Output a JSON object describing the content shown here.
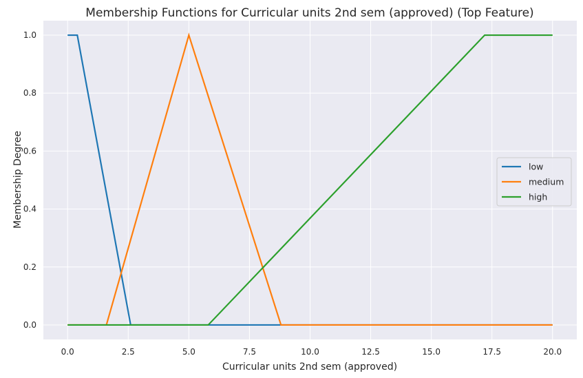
{
  "chart_data": {
    "type": "line",
    "title": "Membership Functions for Curricular units 2nd sem (approved) (Top Feature)",
    "xlabel": "Curricular units 2nd sem (approved)",
    "ylabel": "Membership Degree",
    "xlim": [
      -1.0,
      21.0
    ],
    "ylim": [
      -0.05,
      1.05
    ],
    "xticks": [
      0,
      2.5,
      5,
      7.5,
      10,
      12.5,
      15,
      17.5,
      20
    ],
    "xtick_labels": [
      "0.0",
      "2.5",
      "5.0",
      "7.5",
      "10.0",
      "12.5",
      "15.0",
      "17.5",
      "20.0"
    ],
    "yticks": [
      0,
      0.2,
      0.4,
      0.6,
      0.8,
      1.0
    ],
    "ytick_labels": [
      "0.0",
      "0.2",
      "0.4",
      "0.6",
      "0.8",
      "1.0"
    ],
    "grid": true,
    "legend_position": "center-right",
    "background": "#eaeaf2",
    "series": [
      {
        "name": "low",
        "color": "#1f77b4",
        "x": [
          0,
          0.4,
          2.6,
          20
        ],
        "y": [
          1,
          1,
          0,
          0
        ]
      },
      {
        "name": "medium",
        "color": "#ff7f0e",
        "x": [
          0,
          1.6,
          5.0,
          8.8,
          20
        ],
        "y": [
          0,
          0,
          1,
          0,
          0
        ]
      },
      {
        "name": "high",
        "color": "#2ca02c",
        "x": [
          0,
          5.8,
          17.2,
          20
        ],
        "y": [
          0,
          0,
          1,
          1
        ]
      }
    ]
  }
}
